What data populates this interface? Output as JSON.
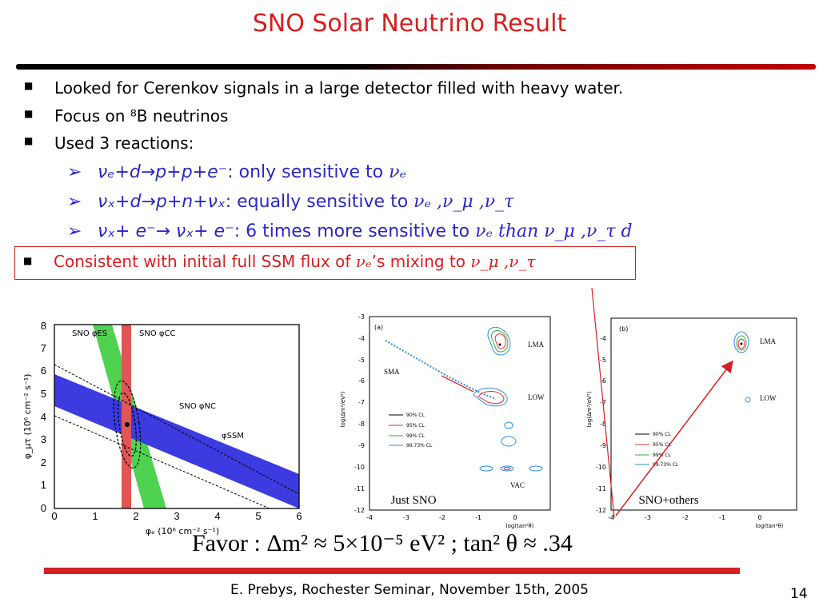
{
  "title": "SNO Solar Neutrino Result",
  "bullets": [
    "Looked for Cerenkov signals in a large detector filled with heavy water.",
    "Focus on ⁸B neutrinos",
    "Used 3 reactions:"
  ],
  "reactions": [
    {
      "formula": "νₑ+d→p+p+e⁻",
      "text": ": only sensitive to ",
      "end": "νₑ"
    },
    {
      "formula": "νₓ+d→p+n+νₓ",
      "text": ": equally sensitive to ",
      "end": "νₑ ,ν_μ ,ν_τ"
    },
    {
      "formula": "νₓ+ e⁻→ νₓ+ e⁻",
      "text": ": 6 times more sensitive to ",
      "end": "νₑ than ν_μ ,ν_τ  d"
    }
  ],
  "conclusion": {
    "prefix": "Consistent with initial full SSM flux of ",
    "nu": "νₑ",
    "middle": "’s mixing to ",
    "end": "ν_μ ,ν_τ"
  },
  "plot1": {
    "xlabel": "φₑ (10⁶ cm⁻² s⁻¹)",
    "ylabel": "φ_μτ (10⁶ cm⁻² s⁻¹)",
    "xticks": [
      "0",
      "1",
      "2",
      "3",
      "4",
      "5",
      "6"
    ],
    "yticks": [
      "0",
      "1",
      "2",
      "3",
      "4",
      "5",
      "6",
      "7",
      "8"
    ],
    "labels": {
      "es": "SNO φES",
      "cc": "SNO φCC",
      "nc": "SNO φNC",
      "ssm": "φSSM"
    }
  },
  "plot2": {
    "panel": "(a)",
    "caption": "Just SNO",
    "ylabel": "log(Δm²/eV²)",
    "xlabel": "log(tan²θ)",
    "xticks": [
      "-4",
      "-3",
      "-2",
      "-1",
      "0"
    ],
    "yticks": [
      "-3",
      "-4",
      "-5",
      "-6",
      "-7",
      "-8",
      "-9",
      "-10",
      "-11",
      "-12"
    ],
    "regions": [
      "LMA",
      "SMA",
      "LOW",
      "VAC"
    ],
    "legend": [
      "90% CL",
      "95% CL",
      "99% CL",
      "99.73% CL"
    ]
  },
  "plot3": {
    "panel": "(b)",
    "caption": "SNO+others",
    "ylabel": "log(Δm²/eV²)",
    "xlabel": "log(tan²θ)",
    "xticks": [
      "-4",
      "-3",
      "-2",
      "-1",
      "0"
    ],
    "yticks": [
      "-4",
      "-5",
      "-6",
      "-7",
      "-8",
      "-9",
      "-10",
      "-11",
      "-12"
    ],
    "regions": [
      "LMA",
      "LOW"
    ],
    "legend": [
      "90% CL",
      "95% CL",
      "99% CL",
      "99.73% CL"
    ]
  },
  "formula": "Favor : Δm² ≈ 5×10⁻⁵ eV² ; tan² θ ≈ .34",
  "footer": "E. Prebys, Rochester Seminar, November 15th, 2005",
  "page_number": "14",
  "colors": {
    "title": "#d42020",
    "sub": "#2929c0",
    "accent": "#d42020"
  }
}
